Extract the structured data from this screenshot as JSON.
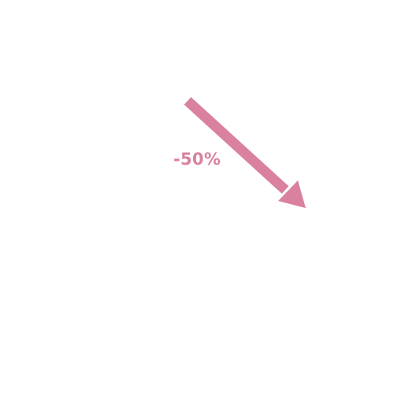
{
  "indicator": {
    "label": "-50%",
    "direction": "down",
    "color": "#d9819f"
  }
}
